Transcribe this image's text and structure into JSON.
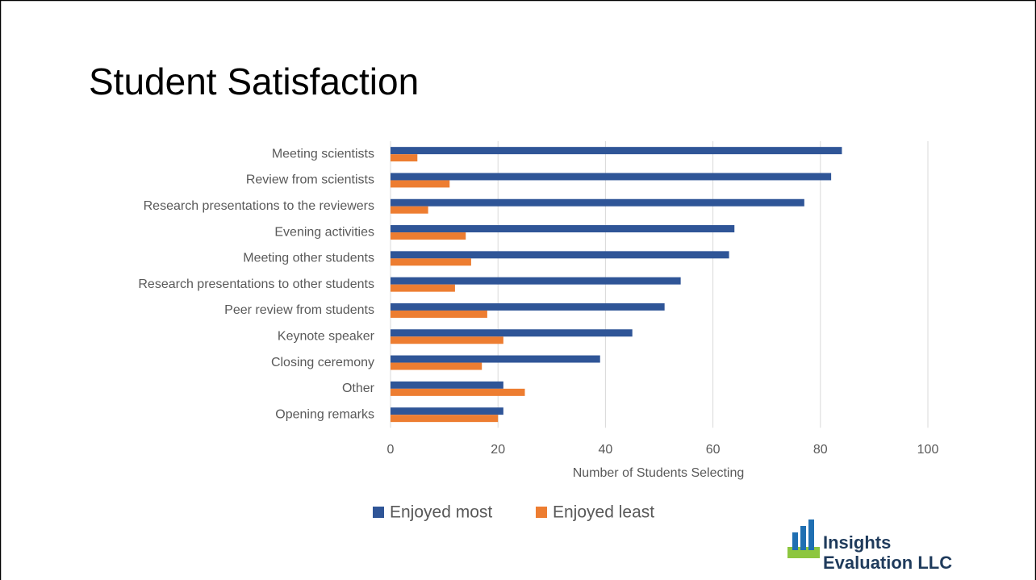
{
  "chart_data": {
    "type": "barh",
    "title": "Student Satisfaction",
    "x_label": "Number of Students Selecting",
    "categories": [
      "Meeting scientists",
      "Review from scientists",
      "Research presentations to the reviewers",
      "Evening activities",
      "Meeting other students",
      "Research presentations to other students",
      "Peer review from students",
      "Keynote speaker",
      "Closing ceremony",
      "Other",
      "Opening remarks"
    ],
    "series": [
      {
        "name": "Enjoyed most",
        "color": "#2f5597",
        "values": [
          84,
          82,
          77,
          64,
          63,
          54,
          51,
          45,
          39,
          21,
          21
        ]
      },
      {
        "name": "Enjoyed least",
        "color": "#ed7d31",
        "values": [
          5,
          11,
          7,
          14,
          15,
          12,
          18,
          21,
          17,
          25,
          20
        ]
      }
    ],
    "xlim": [
      0,
      100
    ],
    "xticks": [
      0,
      20,
      40,
      60,
      80,
      100
    ],
    "grid": true,
    "legend": "bottom"
  },
  "logo": {
    "line1": "Insights",
    "line2": "Evaluation LLC"
  }
}
